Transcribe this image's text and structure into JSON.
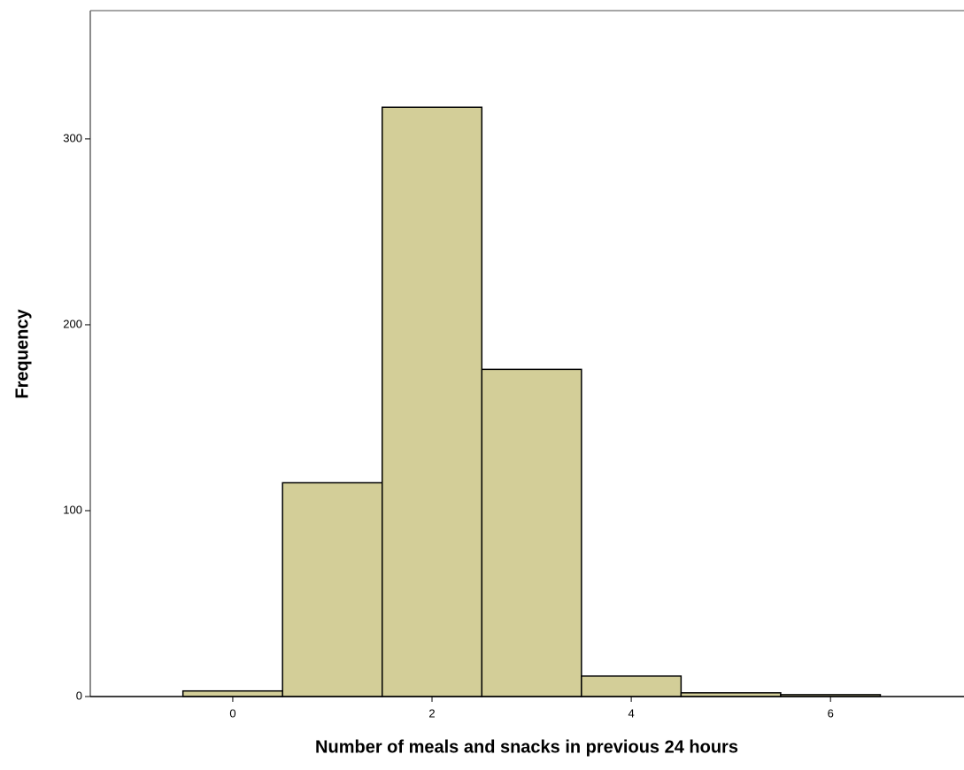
{
  "chart_data": {
    "type": "histogram",
    "xlabel": "Number of meals and snacks in previous 24 hours",
    "ylabel": "Frequency",
    "bins": [
      -0.5,
      0.5,
      1.5,
      2.5,
      3.5,
      4.5,
      5.5,
      6.5
    ],
    "values": [
      3,
      115,
      317,
      176,
      11,
      2,
      1
    ],
    "color": "#d3ce98",
    "xlim": [
      -1.43,
      7.34
    ],
    "xticks": [
      0,
      2,
      4,
      6
    ],
    "ylim": [
      0,
      369
    ],
    "yticks": [
      0,
      100,
      200,
      300
    ]
  }
}
